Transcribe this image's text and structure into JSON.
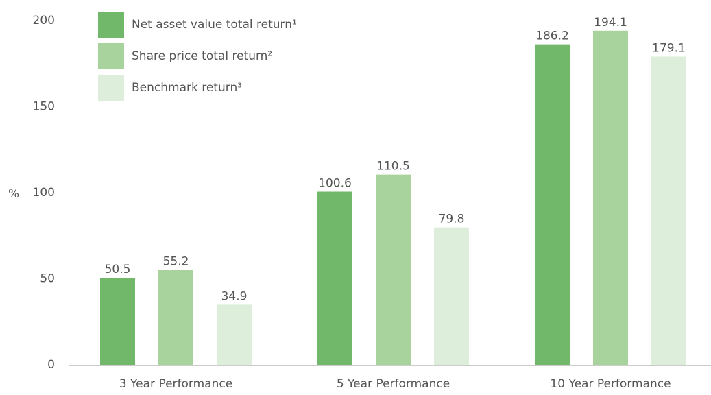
{
  "chart_data": {
    "type": "bar",
    "y_label": "%",
    "categories": [
      "3 Year Performance",
      "5 Year Performance",
      "10 Year Performance"
    ],
    "series": [
      {
        "name": "Net asset value total return¹",
        "color": "#72b86a",
        "values": [
          50.5,
          100.6,
          186.2
        ]
      },
      {
        "name": "Share price total return²",
        "color": "#a8d39d",
        "values": [
          55.2,
          110.5,
          194.1
        ]
      },
      {
        "name": "Benchmark return³",
        "color": "#ddeeda",
        "values": [
          34.9,
          79.8,
          179.1
        ]
      }
    ],
    "ylim": [
      0,
      200
    ],
    "yticks": [
      0,
      50,
      100,
      150,
      200
    ],
    "grid": false
  }
}
